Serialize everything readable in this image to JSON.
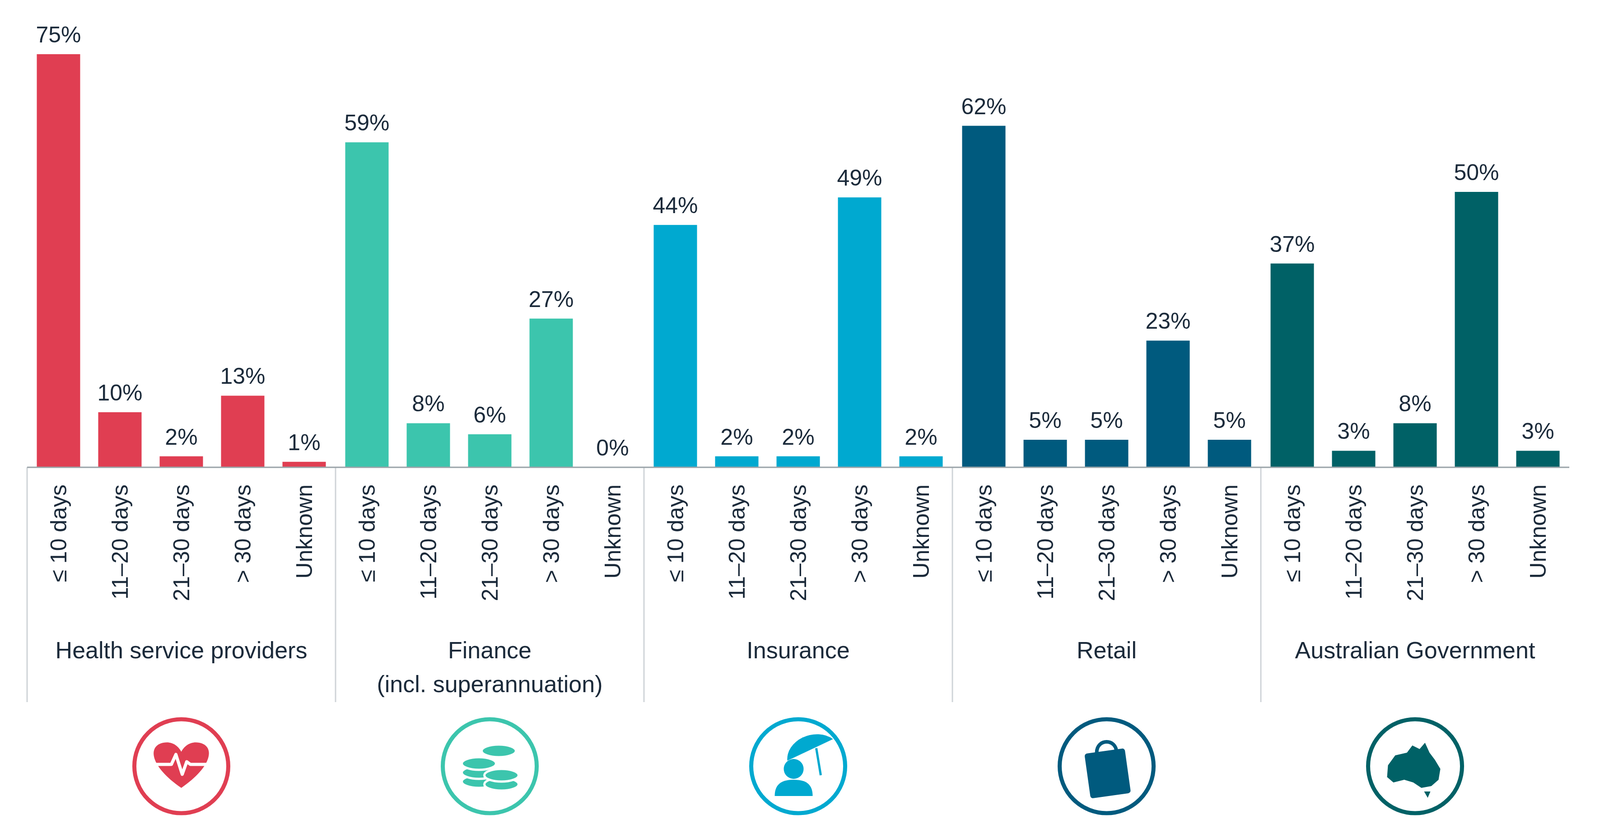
{
  "chart_data": {
    "type": "bar",
    "categories": [
      "≤ 10 days",
      "11–20 days",
      "21–30 days",
      "> 30 days",
      "Unknown"
    ],
    "series": [
      {
        "name": "Health service providers",
        "color": "#e03e52",
        "values": [
          75,
          10,
          2,
          13,
          1
        ],
        "value_labels": [
          "75%",
          "10%",
          "2%",
          "13%",
          "1%"
        ]
      },
      {
        "name": "Finance\n(incl. superannuation)",
        "color": "#3cc5ad",
        "values": [
          59,
          8,
          6,
          27,
          0
        ],
        "value_labels": [
          "59%",
          "8%",
          "6%",
          "27%",
          "0%"
        ]
      },
      {
        "name": "Insurance",
        "color": "#00a9d0",
        "values": [
          44,
          2,
          2,
          49,
          2
        ],
        "value_labels": [
          "44%",
          "2%",
          "2%",
          "49%",
          "2%"
        ]
      },
      {
        "name": "Retail",
        "color": "#005a7e",
        "values": [
          62,
          5,
          5,
          23,
          5
        ],
        "value_labels": [
          "62%",
          "5%",
          "5%",
          "23%",
          "5%"
        ]
      },
      {
        "name": "Australian Government",
        "color": "#006166",
        "values": [
          37,
          3,
          8,
          50,
          3
        ],
        "value_labels": [
          "37%",
          "3%",
          "8%",
          "50%",
          "3%"
        ]
      }
    ],
    "ylim": [
      0,
      75
    ],
    "data_labels": true,
    "tick_labels": false,
    "grid": false
  }
}
